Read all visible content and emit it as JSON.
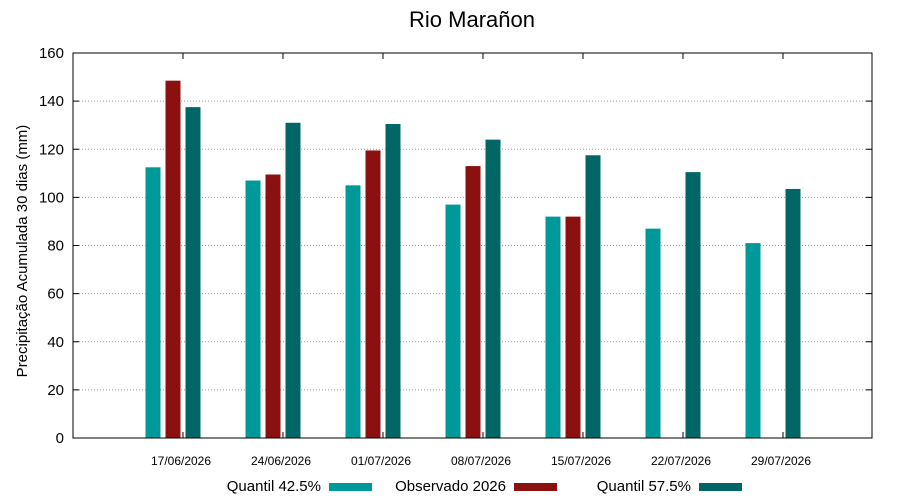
{
  "chart_data": {
    "type": "bar",
    "title": "Rio Marañon",
    "xlabel": "",
    "ylabel": "Precipitação Acumulada 30 dias (mm)",
    "ylim": [
      0,
      160
    ],
    "yticks": [
      0,
      20,
      40,
      60,
      80,
      100,
      120,
      140,
      160
    ],
    "grid": true,
    "legend_position": "bottom",
    "categories": [
      "17/06/2026",
      "24/06/2026",
      "01/07/2026",
      "08/07/2026",
      "15/07/2026",
      "22/07/2026",
      "29/07/2026"
    ],
    "series": [
      {
        "name": "Quantil 42.5%",
        "color": "#009999",
        "values": [
          112.5,
          107,
          105,
          97,
          92,
          87,
          81
        ]
      },
      {
        "name": "Observado 2026",
        "color": "#8b1010",
        "values": [
          148.5,
          109.5,
          119.5,
          113,
          92,
          null,
          null
        ]
      },
      {
        "name": "Quantil 57.5%",
        "color": "#006666",
        "values": [
          137.5,
          131,
          130.5,
          124,
          117.5,
          110.5,
          103.5
        ]
      }
    ]
  }
}
